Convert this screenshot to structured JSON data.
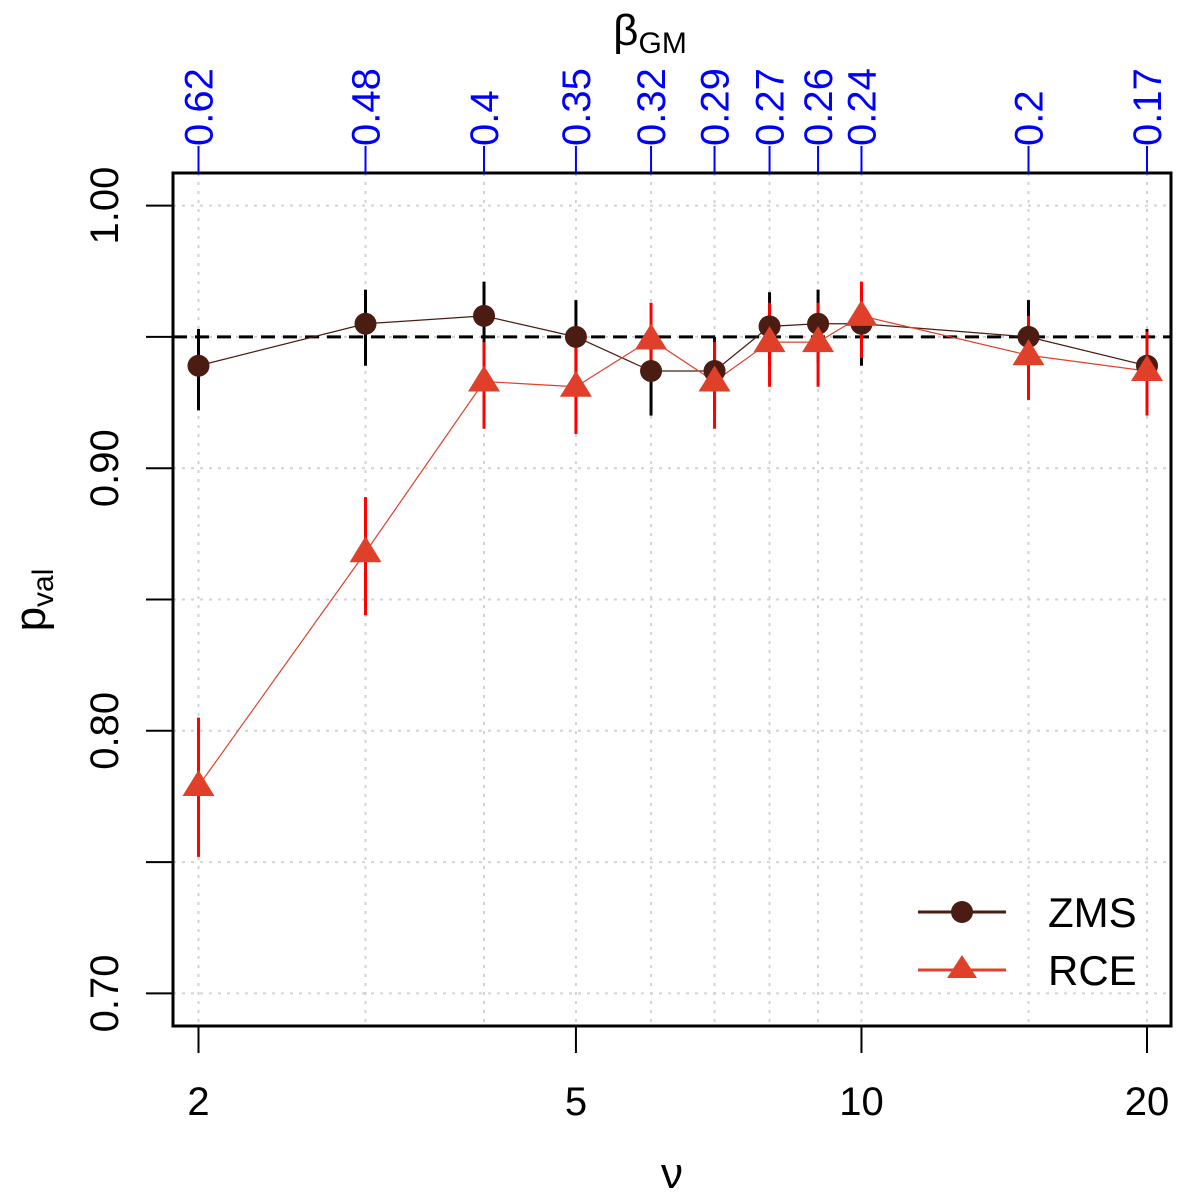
{
  "chart_data": {
    "type": "scatter",
    "xscale": "log",
    "xlim": [
      1.88,
      21.2
    ],
    "ylim": [
      0.6876,
      1.0124
    ],
    "x_ticks": [
      2,
      5,
      10,
      20
    ],
    "x_tick_labels": [
      "2",
      "5",
      "10",
      "20"
    ],
    "y_ticks": [
      0.7,
      0.75,
      0.8,
      0.85,
      0.9,
      0.95,
      1.0
    ],
    "y_tick_labels": [
      "0.70",
      "",
      "0.80",
      "",
      "0.90",
      "",
      "1.00"
    ],
    "xlabel": "ν",
    "ylabel": {
      "main": "p",
      "sub": "val"
    },
    "top_axis": {
      "label": {
        "main": "β",
        "sub": "GM"
      },
      "positions": [
        2,
        3,
        4,
        5,
        6,
        7,
        8,
        9,
        10,
        15,
        20
      ],
      "labels": [
        "0.62",
        "0.48",
        "0.4",
        "0.35",
        "0.32",
        "0.29",
        "0.27",
        "0.26",
        "0.24",
        "0.2",
        "0.17"
      ],
      "color": "#0000ff"
    },
    "reference_line": 0.95,
    "grid": true,
    "series": [
      {
        "name": "ZMS",
        "marker": "circle",
        "color": "#4a1c12",
        "x": [
          2,
          3,
          4,
          5,
          6,
          7,
          8,
          9,
          10,
          15,
          20
        ],
        "y": [
          0.939,
          0.955,
          0.958,
          0.95,
          0.937,
          0.937,
          0.954,
          0.955,
          0.955,
          0.95,
          0.939
        ],
        "lower": [
          0.922,
          0.939,
          0.944,
          0.936,
          0.92,
          0.922,
          0.939,
          0.94,
          0.939,
          0.936,
          0.922
        ],
        "upper": [
          0.953,
          0.968,
          0.971,
          0.964,
          0.951,
          0.95,
          0.967,
          0.968,
          0.968,
          0.964,
          0.953
        ]
      },
      {
        "name": "RCE",
        "marker": "triangle",
        "color": "#e0402a",
        "bar_color": "#ff0000",
        "x": [
          2,
          3,
          4,
          5,
          6,
          7,
          8,
          9,
          10,
          15,
          20
        ],
        "y": [
          0.779,
          0.868,
          0.933,
          0.931,
          0.949,
          0.933,
          0.948,
          0.948,
          0.958,
          0.943,
          0.937
        ],
        "lower": [
          0.752,
          0.844,
          0.915,
          0.913,
          0.933,
          0.915,
          0.931,
          0.931,
          0.942,
          0.926,
          0.92
        ],
        "upper": [
          0.805,
          0.889,
          0.948,
          0.946,
          0.963,
          0.948,
          0.963,
          0.963,
          0.971,
          0.958,
          0.952
        ]
      }
    ],
    "legend": {
      "position": "bottom-right",
      "entries": [
        "ZMS",
        "RCE"
      ]
    }
  }
}
